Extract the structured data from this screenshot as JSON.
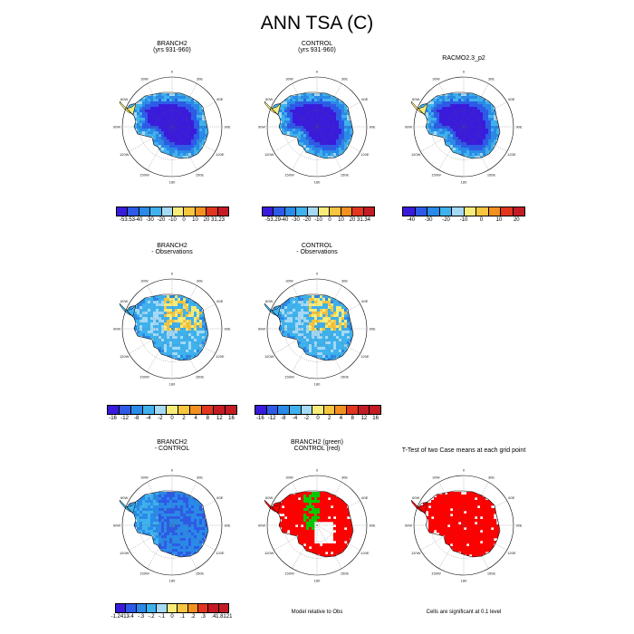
{
  "page": {
    "title": "ANN TSA (C)"
  },
  "globe_labels": [
    "0",
    "30E",
    "60E",
    "90E",
    "120E",
    "150E",
    "180",
    "150W",
    "120W",
    "90W",
    "60W",
    "30W"
  ],
  "colors": {
    "bar_abs": [
      "#3a1bdc",
      "#2d5be8",
      "#2a8ae8",
      "#3fb2ee",
      "#a5d9f5",
      "#f7ec7a",
      "#f7c540",
      "#f39020",
      "#e2361e",
      "#c41c24"
    ],
    "bar_diff": [
      "#3a1bdc",
      "#2d5be8",
      "#2a8ae8",
      "#3fb2ee",
      "#a5d9f5",
      "#f7ec7a",
      "#f7c540",
      "#f39020",
      "#e2361e",
      "#c41c24",
      "#c41c24"
    ],
    "sig_red": "#ff0000",
    "sig_green": "#00cc00"
  },
  "chart_data": [
    {
      "type": "heatmap",
      "title": "BRANCH2",
      "subtitle": "(yrs 931-960)",
      "colorbar": [
        "-53.53",
        "-40",
        "-30",
        "-20",
        "-10",
        "0",
        "10",
        "20",
        "31.23"
      ],
      "colorbar_values": [
        -53.53,
        -40,
        -30,
        -20,
        -10,
        0,
        10,
        20,
        31.23
      ],
      "field": "abs"
    },
    {
      "type": "heatmap",
      "title": "CONTROL",
      "subtitle": "(yrs 931-960)",
      "colorbar": [
        "-53.29",
        "-40",
        "-30",
        "-20",
        "-10",
        "0",
        "10",
        "20",
        "31.34"
      ],
      "colorbar_values": [
        -53.29,
        -40,
        -30,
        -20,
        -10,
        0,
        10,
        20,
        31.34
      ],
      "field": "abs"
    },
    {
      "type": "heatmap",
      "title": "RACMO2.3_p2",
      "subtitle": "",
      "colorbar": [
        "-40",
        "-30",
        "-20",
        "-10",
        "0",
        "10",
        "20"
      ],
      "colorbar_values": [
        -40,
        -30,
        -20,
        -10,
        0,
        10,
        20
      ],
      "field": "abs"
    },
    {
      "type": "heatmap",
      "title": "BRANCH2",
      "subtitle": "- Observations",
      "colorbar": [
        "-16",
        "-12",
        "-8",
        "-4",
        "-2",
        "0",
        "2",
        "4",
        "8",
        "12",
        "16"
      ],
      "colorbar_values": [
        -16,
        -12,
        -8,
        -4,
        -2,
        0,
        2,
        4,
        8,
        12,
        16
      ],
      "field": "bias"
    },
    {
      "type": "heatmap",
      "title": "CONTROL",
      "subtitle": "- Observations",
      "colorbar": [
        "-16",
        "-12",
        "-8",
        "-4",
        "-2",
        "0",
        "2",
        "4",
        "8",
        "12",
        "16"
      ],
      "colorbar_values": [
        -16,
        -12,
        -8,
        -4,
        -2,
        0,
        2,
        4,
        8,
        12,
        16
      ],
      "field": "bias"
    },
    {
      "type": "heatmap",
      "title": "BRANCH2",
      "subtitle": "- CONTROL",
      "colorbar": [
        "-1.2413",
        "-.4",
        "-.3",
        "-.2",
        "-.1",
        "0",
        ".1",
        ".2",
        ".3",
        ".4",
        "1.8121"
      ],
      "colorbar_values": [
        -1.2413,
        -0.4,
        -0.3,
        -0.2,
        -0.1,
        0,
        0.1,
        0.2,
        0.3,
        0.4,
        1.8121
      ],
      "field": "diff"
    },
    {
      "type": "heatmap",
      "title": "BRANCH2 (green)",
      "subtitle": "CONTROL (red)",
      "caption": "Model relative to Obs",
      "field": "model_vs_obs"
    },
    {
      "type": "heatmap",
      "title": "T-Test of two Case means at each grid point",
      "subtitle": "",
      "caption": "Cells are significant at 0.1 level",
      "field": "ttest"
    }
  ]
}
